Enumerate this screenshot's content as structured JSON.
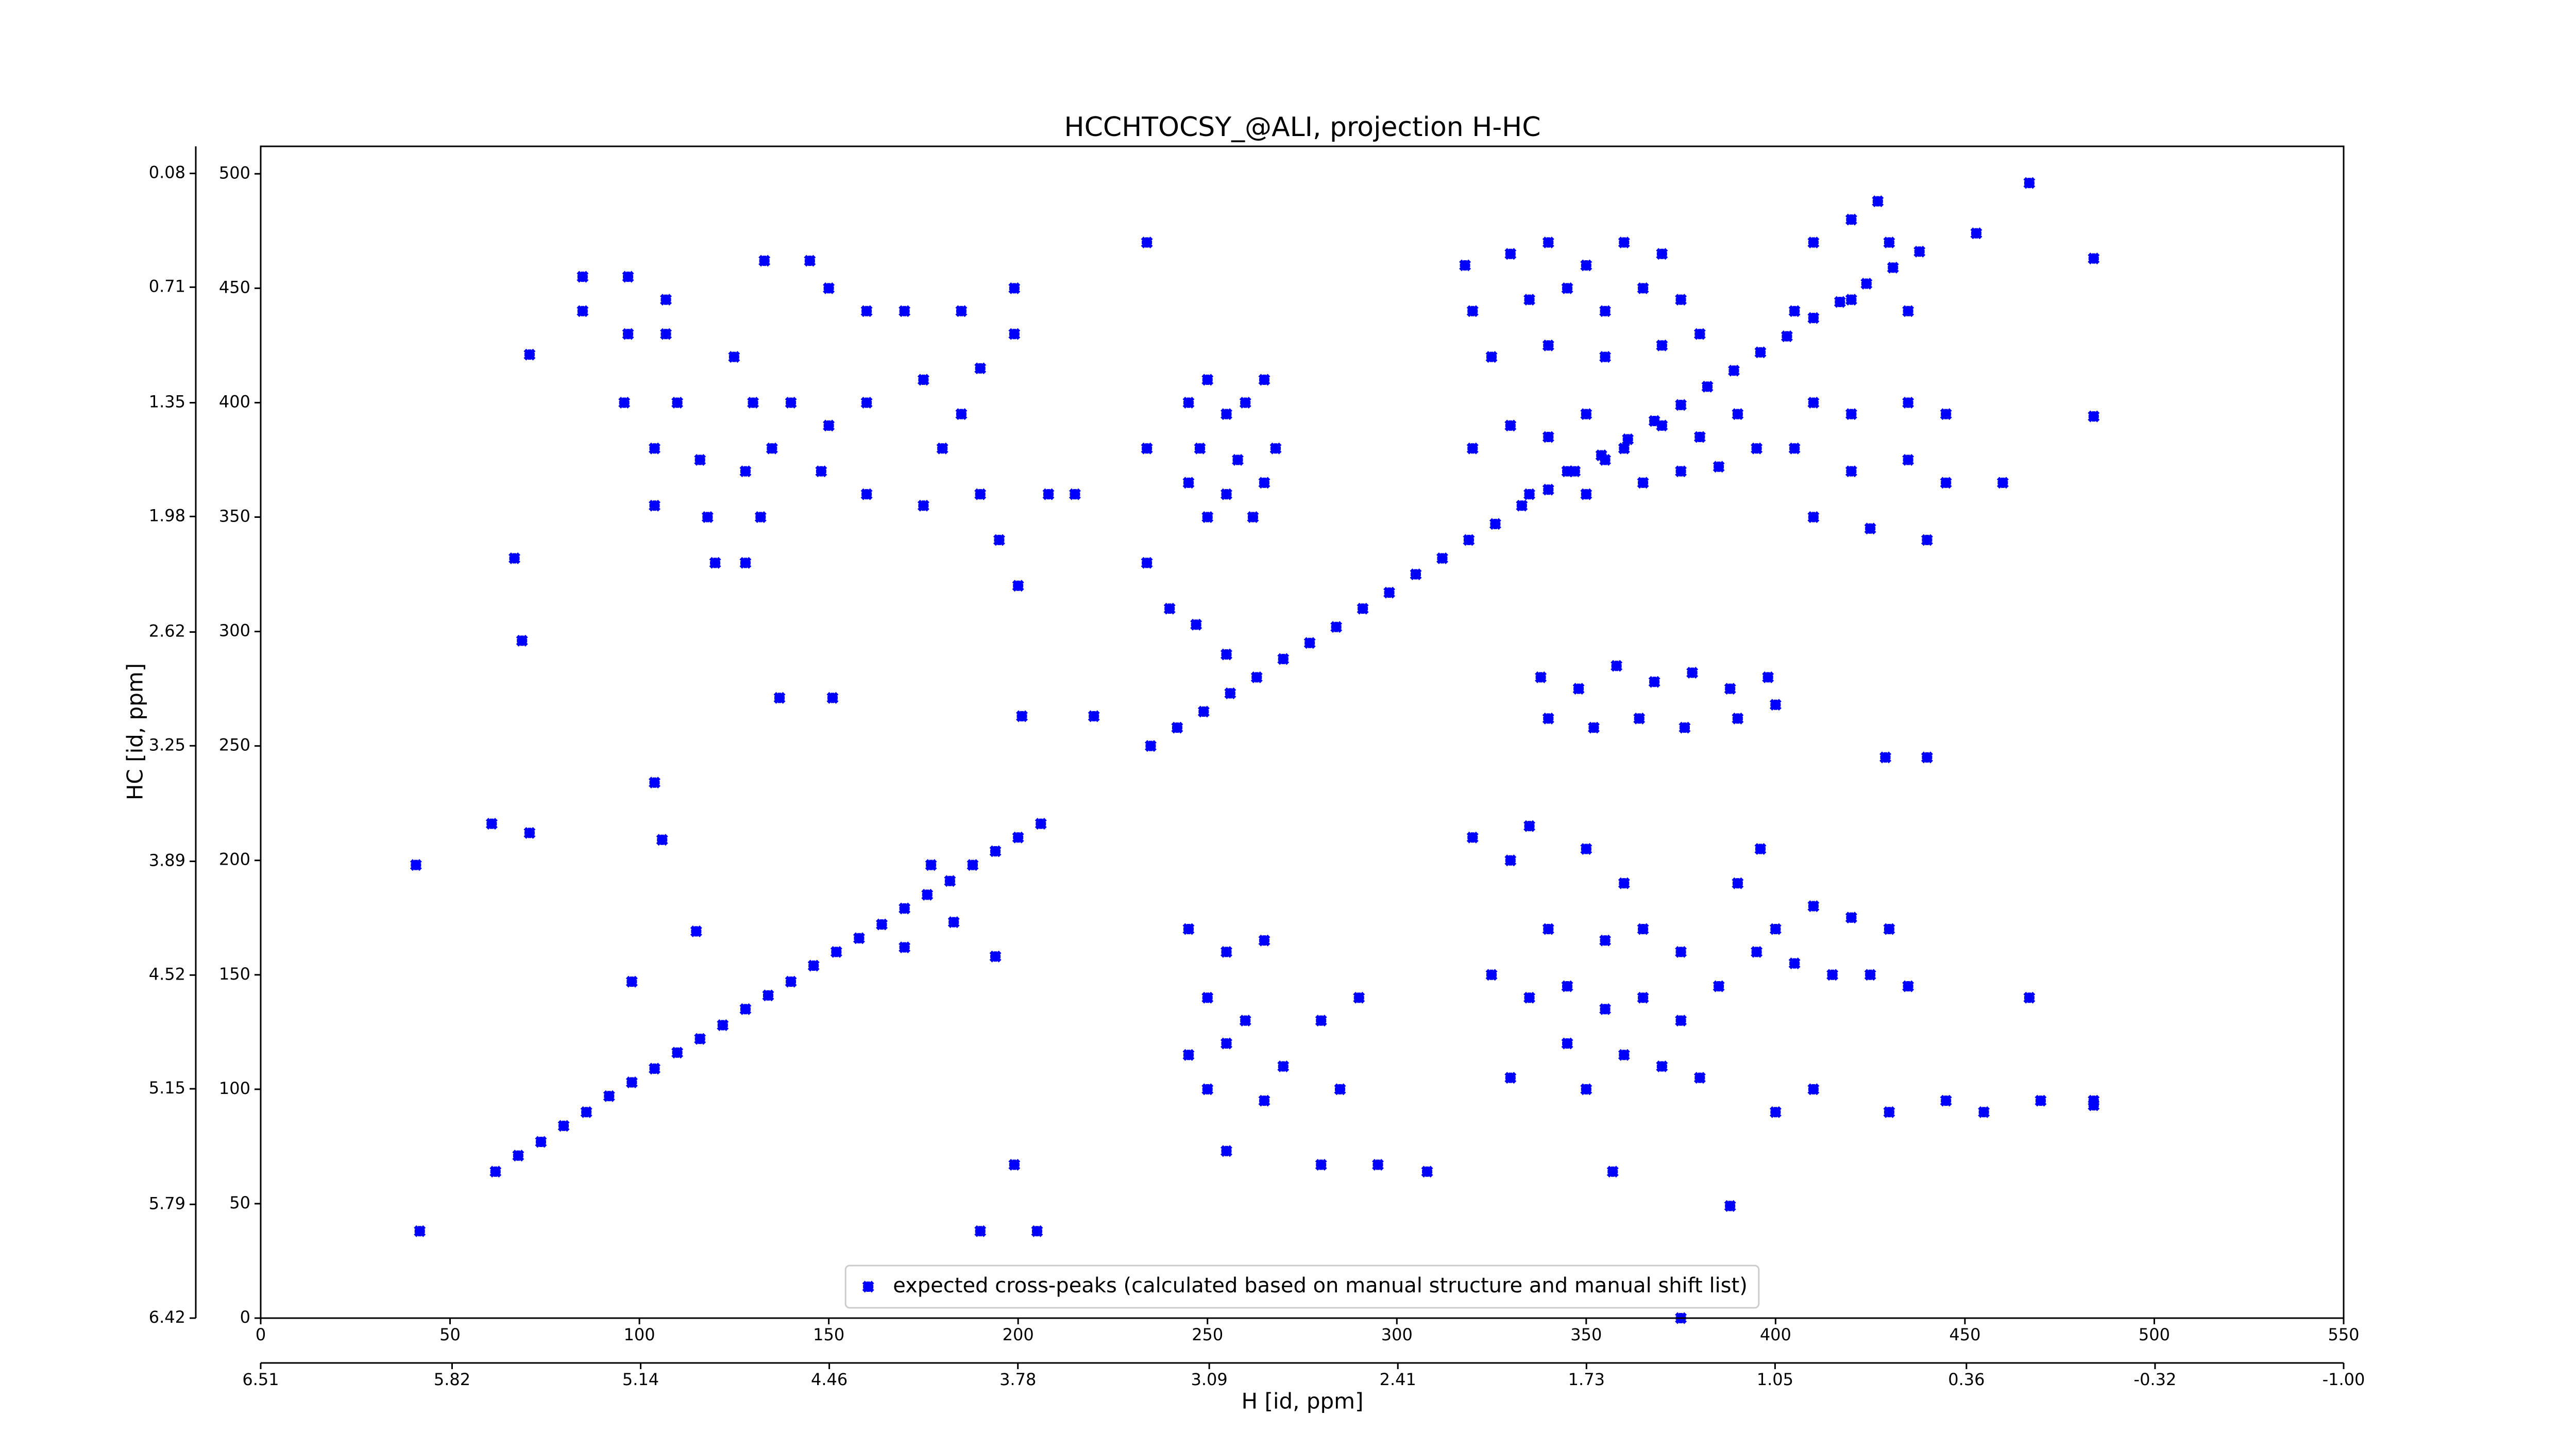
{
  "chart_data": {
    "type": "scatter",
    "title": "HCCHTOCSY_@ALI, projection H-HC",
    "xlabel": "H [id, ppm]",
    "ylabel": "HC [id, ppm]",
    "xlim": [
      0,
      550
    ],
    "xticks": [
      0,
      50,
      100,
      150,
      200,
      250,
      300,
      350,
      400,
      450,
      500,
      550
    ],
    "ylim": [
      0,
      512
    ],
    "yticks": [
      0,
      50,
      100,
      150,
      200,
      250,
      300,
      350,
      400,
      450,
      500
    ],
    "x2lim": [
      6.51,
      -1
    ],
    "x2ticks": [
      6.51,
      5.82,
      5.14,
      4.46,
      3.78,
      3.09,
      2.41,
      1.73,
      1.05,
      0.36,
      -0.32,
      {
        "value": -1,
        "label": "-1.00"
      }
    ],
    "y2lim": [
      6.42,
      -0.07
    ],
    "y2ticks": [
      6.42,
      5.79,
      5.15,
      4.52,
      3.89,
      3.25,
      2.62,
      1.98,
      1.35,
      0.71,
      0.08
    ],
    "legend": "lower center",
    "series": [
      {
        "name": "expected cross-peaks (calculated based on manual structure and manual shift list)",
        "color": "#0000ff",
        "x": [
          62,
          68,
          74,
          80,
          86,
          92,
          98,
          104,
          110,
          116,
          122,
          128,
          134,
          140,
          146,
          152,
          158,
          164,
          170,
          176,
          182,
          188,
          194,
          200,
          206,
          235,
          242,
          249,
          256,
          263,
          270,
          277,
          284,
          291,
          298,
          305,
          312,
          319,
          326,
          333,
          340,
          347,
          354,
          361,
          368,
          375,
          382,
          389,
          396,
          403,
          410,
          417,
          424,
          431,
          438,
          85,
          97,
          85,
          97,
          107,
          107,
          71,
          96,
          110,
          104,
          116,
          104,
          118,
          120,
          133,
          145,
          150,
          160,
          170,
          175,
          160,
          150,
          140,
          135,
          148,
          160,
          175,
          185,
          190,
          185,
          180,
          190,
          195,
          125,
          130,
          128,
          132,
          128,
          199,
          199,
          200,
          208,
          215,
          234,
          234,
          234,
          245,
          250,
          255,
          260,
          265,
          248,
          258,
          268,
          245,
          255,
          265,
          250,
          262,
          247,
          255,
          240,
          318,
          330,
          340,
          350,
          360,
          370,
          320,
          335,
          345,
          355,
          365,
          375,
          325,
          340,
          355,
          370,
          380,
          320,
          330,
          340,
          350,
          360,
          370,
          380,
          390,
          345,
          355,
          365,
          375,
          385,
          395,
          335,
          350,
          410,
          420,
          430,
          405,
          420,
          435,
          410,
          420,
          435,
          445,
          405,
          420,
          435,
          445,
          410,
          425,
          440,
          427,
          453,
          467,
          484,
          460,
          484,
          338,
          348,
          358,
          368,
          378,
          388,
          398,
          340,
          352,
          364,
          376,
          390,
          400,
          320,
          330,
          335,
          350,
          360,
          340,
          355,
          365,
          375,
          325,
          335,
          345,
          355,
          365,
          375,
          385,
          345,
          360,
          370,
          380,
          330,
          350,
          390,
          245,
          255,
          265,
          250,
          260,
          245,
          255,
          270,
          280,
          290,
          250,
          265,
          285,
          400,
          410,
          420,
          430,
          405,
          415,
          425,
          435,
          395,
          400,
          410,
          430,
          445,
          455,
          470,
          484,
          41,
          42,
          61,
          71,
          67,
          69,
          190,
          205,
          199,
          255,
          280,
          295,
          308,
          357,
          375,
          388,
          396,
          429,
          440,
          170,
          194,
          183,
          177,
          106,
          98,
          115,
          104,
          201,
          220,
          151,
          137,
          484,
          467
        ],
        "y": [
          64,
          71,
          77,
          84,
          90,
          97,
          103,
          109,
          116,
          122,
          128,
          135,
          141,
          147,
          154,
          160,
          166,
          172,
          179,
          185,
          191,
          198,
          204,
          210,
          216,
          250,
          258,
          265,
          273,
          280,
          288,
          295,
          302,
          310,
          317,
          325,
          332,
          340,
          347,
          355,
          362,
          370,
          377,
          384,
          392,
          399,
          407,
          414,
          422,
          429,
          437,
          444,
          452,
          459,
          466,
          455,
          455,
          440,
          430,
          445,
          430,
          421,
          400,
          400,
          380,
          375,
          355,
          350,
          330,
          462,
          462,
          450,
          440,
          440,
          410,
          400,
          390,
          400,
          380,
          370,
          360,
          355,
          440,
          415,
          395,
          380,
          360,
          340,
          420,
          400,
          370,
          350,
          330,
          450,
          430,
          320,
          360,
          360,
          470,
          330,
          380,
          400,
          410,
          395,
          400,
          410,
          380,
          375,
          380,
          365,
          360,
          365,
          350,
          350,
          303,
          290,
          310,
          460,
          465,
          470,
          460,
          470,
          465,
          440,
          445,
          450,
          440,
          450,
          445,
          420,
          425,
          420,
          425,
          430,
          380,
          390,
          385,
          395,
          380,
          390,
          385,
          395,
          370,
          375,
          365,
          370,
          372,
          380,
          360,
          360,
          470,
          480,
          470,
          440,
          445,
          440,
          400,
          395,
          400,
          395,
          380,
          370,
          375,
          365,
          350,
          345,
          340,
          488,
          474,
          496,
          394,
          365,
          463,
          280,
          275,
          285,
          278,
          282,
          275,
          280,
          262,
          258,
          262,
          258,
          262,
          268,
          210,
          200,
          215,
          205,
          190,
          170,
          165,
          170,
          160,
          150,
          140,
          145,
          135,
          140,
          130,
          145,
          120,
          115,
          110,
          105,
          105,
          100,
          190,
          170,
          160,
          165,
          140,
          130,
          115,
          120,
          110,
          130,
          140,
          100,
          95,
          100,
          170,
          180,
          175,
          170,
          155,
          150,
          150,
          145,
          160,
          90,
          100,
          90,
          95,
          90,
          95,
          95,
          198,
          38,
          216,
          212,
          332,
          296,
          38,
          38,
          67,
          73,
          67,
          67,
          64,
          64,
          0,
          49,
          205,
          245,
          245,
          162,
          158,
          173,
          198,
          209,
          147,
          169,
          234,
          263,
          263,
          271,
          271,
          93,
          140
        ]
      }
    ]
  }
}
